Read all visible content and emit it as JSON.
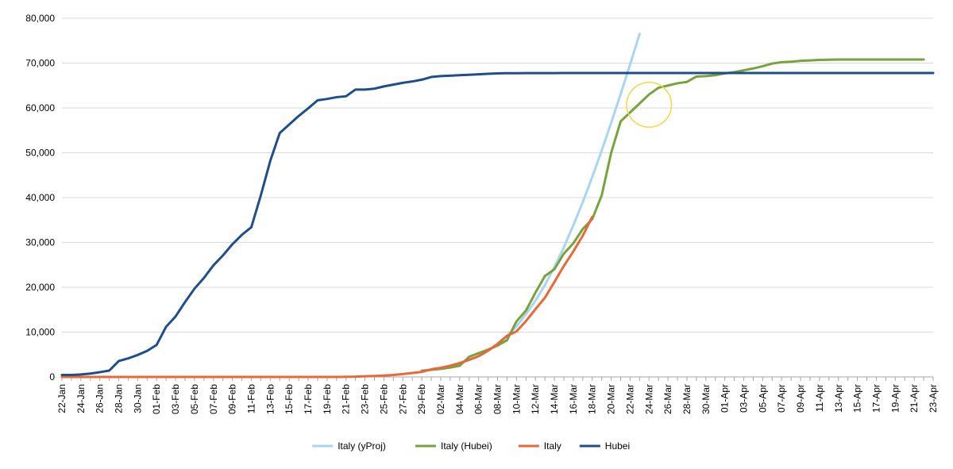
{
  "chart_data": {
    "type": "line",
    "title": "",
    "xlabel": "",
    "ylabel": "",
    "ylim": [
      0,
      80000
    ],
    "yticks": [
      0,
      10000,
      20000,
      30000,
      40000,
      50000,
      60000,
      70000,
      80000
    ],
    "ytick_labels": [
      "0",
      "10,000",
      "20,000",
      "30,000",
      "40,000",
      "50,000",
      "60,000",
      "70,000",
      "80,000"
    ],
    "x_categories": [
      "22-Jan",
      "23-Jan",
      "24-Jan",
      "25-Jan",
      "26-Jan",
      "27-Jan",
      "28-Jan",
      "29-Jan",
      "30-Jan",
      "31-Jan",
      "01-Feb",
      "02-Feb",
      "03-Feb",
      "04-Feb",
      "05-Feb",
      "06-Feb",
      "07-Feb",
      "08-Feb",
      "09-Feb",
      "10-Feb",
      "11-Feb",
      "12-Feb",
      "13-Feb",
      "14-Feb",
      "15-Feb",
      "16-Feb",
      "17-Feb",
      "18-Feb",
      "19-Feb",
      "20-Feb",
      "21-Feb",
      "22-Feb",
      "23-Feb",
      "24-Feb",
      "25-Feb",
      "26-Feb",
      "27-Feb",
      "28-Feb",
      "29-Feb",
      "01-Mar",
      "02-Mar",
      "03-Mar",
      "04-Mar",
      "05-Mar",
      "06-Mar",
      "07-Mar",
      "08-Mar",
      "09-Mar",
      "10-Mar",
      "11-Mar",
      "12-Mar",
      "13-Mar",
      "14-Mar",
      "15-Mar",
      "16-Mar",
      "17-Mar",
      "18-Mar",
      "19-Mar",
      "20-Mar",
      "21-Mar",
      "22-Mar",
      "23-Mar",
      "24-Mar",
      "25-Mar",
      "26-Mar",
      "27-Mar",
      "28-Mar",
      "29-Mar",
      "30-Mar",
      "31-Mar",
      "01-Apr",
      "02-Apr",
      "03-Apr",
      "04-Apr",
      "05-Apr",
      "06-Apr",
      "07-Apr",
      "08-Apr",
      "09-Apr",
      "10-Apr",
      "11-Apr",
      "12-Apr",
      "13-Apr",
      "14-Apr",
      "15-Apr",
      "16-Apr",
      "17-Apr",
      "18-Apr",
      "19-Apr",
      "20-Apr",
      "21-Apr",
      "22-Apr",
      "23-Apr"
    ],
    "x_tick_labels": [
      "22-Jan",
      "24-Jan",
      "26-Jan",
      "28-Jan",
      "30-Jan",
      "01-Feb",
      "03-Feb",
      "05-Feb",
      "07-Feb",
      "09-Feb",
      "11-Feb",
      "13-Feb",
      "15-Feb",
      "17-Feb",
      "19-Feb",
      "21-Feb",
      "23-Feb",
      "25-Feb",
      "27-Feb",
      "29-Feb",
      "02-Mar",
      "04-Mar",
      "06-Mar",
      "08-Mar",
      "10-Mar",
      "12-Mar",
      "14-Mar",
      "16-Mar",
      "18-Mar",
      "20-Mar",
      "22-Mar",
      "24-Mar",
      "26-Mar",
      "28-Mar",
      "30-Mar",
      "01-Apr",
      "03-Apr",
      "05-Apr",
      "07-Apr",
      "09-Apr",
      "11-Apr",
      "13-Apr",
      "15-Apr",
      "17-Apr",
      "19-Apr",
      "21-Apr",
      "23-Apr"
    ],
    "grid": "horizontal",
    "legend_position": "bottom",
    "series": [
      {
        "name": "Italy (yProj)",
        "color": "#a9d5f2",
        "start": "01-Mar",
        "values": [
          1700,
          2000,
          2400,
          3000,
          3700,
          4600,
          5800,
          7200,
          9100,
          11300,
          14000,
          17000,
          20500,
          24500,
          28900,
          33800,
          39000,
          44600,
          50500,
          56700,
          63100,
          69700,
          76500
        ]
      },
      {
        "name": "Italy (Hubei)",
        "color": "#77a33d",
        "start": "29-Feb",
        "values": [
          1400,
          1600,
          1800,
          2100,
          2500,
          4500,
          5300,
          6100,
          7000,
          8200,
          12400,
          14800,
          18800,
          22500,
          24000,
          27500,
          29800,
          33000,
          35200,
          40500,
          50000,
          57000,
          59000,
          61000,
          63000,
          64500,
          65000,
          65500,
          65800,
          67000,
          67100,
          67300,
          67700,
          68000,
          68400,
          68800,
          69300,
          69900,
          70200,
          70300,
          70500,
          70600,
          70700,
          70750,
          70800,
          70800,
          70800,
          70800,
          70800,
          70800,
          70800,
          70800,
          70800,
          70800
        ]
      },
      {
        "name": "Italy",
        "color": "#e8683a",
        "start": "22-Jan",
        "values": [
          0,
          0,
          0,
          0,
          0,
          0,
          0,
          0,
          0,
          0,
          0,
          0,
          0,
          0,
          0,
          0,
          0,
          0,
          0,
          0,
          0,
          0,
          0,
          0,
          0,
          0,
          0,
          0,
          0,
          0,
          20,
          60,
          150,
          230,
          320,
          450,
          650,
          890,
          1130,
          1700,
          2040,
          2500,
          3100,
          3850,
          4630,
          5880,
          7380,
          9170,
          10150,
          12460,
          15110,
          17660,
          21160,
          24750,
          27980,
          31510,
          35700
        ]
      },
      {
        "name": "Hubei",
        "color": "#1f4e88",
        "start": "22-Jan",
        "values": [
          440,
          440,
          550,
          760,
          1060,
          1420,
          3560,
          4150,
          4900,
          5810,
          7150,
          11200,
          13500,
          16700,
          19700,
          22100,
          24900,
          27100,
          29600,
          31700,
          33400,
          40500,
          48200,
          54400,
          56300,
          58200,
          59900,
          61700,
          62000,
          62400,
          62600,
          64100,
          64100,
          64300,
          64800,
          65200,
          65600,
          65900,
          66300,
          66900,
          67100,
          67200,
          67300,
          67400,
          67500,
          67600,
          67700,
          67750,
          67750,
          67760,
          67760,
          67760,
          67770,
          67780,
          67790,
          67790,
          67790,
          67790,
          67790,
          67790,
          67790,
          67790,
          67790,
          67790,
          67790,
          67790,
          67790,
          67790,
          67790,
          67790,
          67790,
          67790,
          67790,
          67790,
          67790,
          67790,
          67790,
          67790,
          67790,
          67790,
          67790,
          67790,
          67790,
          67790,
          67790,
          67790,
          67790,
          67790,
          67790,
          67790,
          67790,
          67790,
          67790
        ]
      }
    ],
    "annotation": {
      "shape": "circle",
      "color": "#f2d64b",
      "center_x": "24-Mar",
      "center_y": 60700,
      "radius_y": 5000
    }
  }
}
